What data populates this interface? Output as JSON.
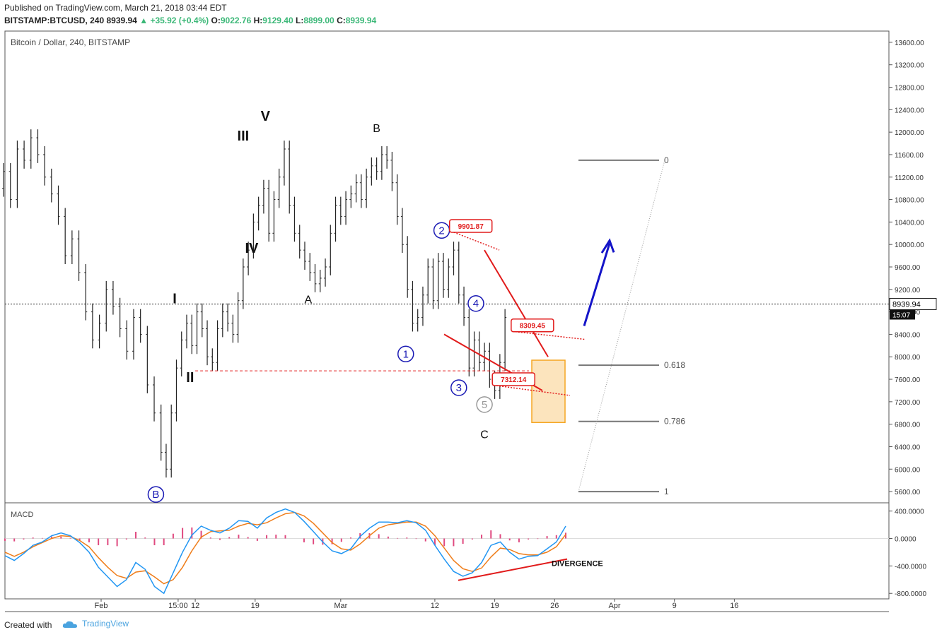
{
  "header": {
    "published_line": "Published on TradingView.com, March 21, 2018 03:44 EDT",
    "symbol": "BITSTAMP:BTCUSD, 240",
    "last": "8939.94",
    "change": "+35.92 (+0.4%)",
    "o_label": "O:",
    "o_value": "9022.76",
    "h_label": "H:",
    "h_value": "9129.40",
    "l_label": "L:",
    "l_value": "8899.00",
    "c_label": "C:",
    "c_value": "8939.94",
    "up_arrow": "▲"
  },
  "footer": {
    "created_with": "Created with",
    "brand": "TradingView"
  },
  "colors": {
    "up": "#3cb878",
    "grid": "#e9e9e9",
    "red": "#e11b1b",
    "blue": "#1414c8",
    "wave_circle": "#1a1ab4",
    "orange_box": "#f5a623",
    "fib_line": "#777777",
    "macd_line": "#2196f3",
    "signal_line": "#ef7d1a",
    "hist_pos": "#e0497f",
    "hist_neg": "#e0497f"
  },
  "chart_data": [
    {
      "type": "line",
      "title": "Bitcoin / Dollar, 240, BITSTAMP",
      "y_axis": {
        "ticks": [
          5600,
          6000,
          6400,
          6800,
          7200,
          7600,
          8000,
          8400,
          8800,
          9200,
          9600,
          10000,
          10400,
          10800,
          11200,
          11600,
          12000,
          12400,
          12800,
          13200,
          13600
        ],
        "tick_labels": [
          "5600.00",
          "6000.00",
          "6400.00",
          "6800.00",
          "7200.00",
          "7600.00",
          "8000.00",
          "8400.00",
          "8800.00",
          "9200.00",
          "9600.00",
          "10000.00",
          "10400.00",
          "10800.00",
          "11200.00",
          "11600.00",
          "12000.00",
          "12400.00",
          "12800.00",
          "13200.00",
          "13600.00"
        ],
        "ylim": [
          5400,
          13800
        ]
      },
      "x_axis": {
        "labels": [
          "Feb",
          "15:00",
          "12",
          "19",
          "Mar",
          "12",
          "19",
          "26",
          "Apr",
          "9",
          "16"
        ],
        "label_days": [
          0,
          9,
          11,
          18,
          28,
          39,
          46,
          53,
          60,
          67,
          74
        ]
      },
      "current_price": "8939.94",
      "current_price_value": 8939.94,
      "countdown": "15:07",
      "price_series_days": [
        -17,
        -16.2,
        -15.4,
        -14.6,
        -13.8,
        -13,
        -12.2,
        -11.4,
        -10.6,
        -9.8,
        -9,
        -8.2,
        -7.4,
        -6.6,
        -5.8,
        -5,
        -4.2,
        -3.4,
        -2.6,
        -1.8,
        -1,
        -0.2,
        0.6,
        1.4,
        2.2,
        3,
        3.8,
        4.6,
        5.4,
        6.2,
        7,
        7.6,
        8.2,
        8.8,
        9.4,
        10,
        10.6,
        11.2,
        11.8,
        12.4,
        13,
        13.6,
        14.2,
        14.8,
        15.4,
        16,
        16.6,
        17.2,
        17.8,
        18.4,
        19,
        19.6,
        20.2,
        20.8,
        21.4,
        22,
        22.6,
        23.2,
        23.8,
        24.4,
        25,
        25.6,
        26.2,
        26.8,
        27.4,
        28,
        28.6,
        29.2,
        29.8,
        30.4,
        31,
        31.6,
        32.2,
        32.8,
        33.4,
        34,
        34.6,
        35.2,
        35.8,
        36.4,
        37,
        37.6,
        38.2,
        38.8,
        39.4,
        40,
        40.6,
        41.2,
        41.8,
        42.4,
        43,
        43.6,
        44.2,
        44.8,
        45.4,
        46,
        46.6,
        47.2
      ],
      "price_series_values": [
        10200,
        10900,
        10500,
        10800,
        11100,
        10600,
        11000,
        11300,
        10800,
        11700,
        11500,
        11900,
        11600,
        11200,
        10900,
        10500,
        9800,
        10100,
        9500,
        8800,
        8300,
        8600,
        9200,
        8900,
        8500,
        8100,
        8700,
        8400,
        7500,
        7000,
        6300,
        6000,
        7000,
        7800,
        8300,
        8600,
        8200,
        8800,
        8500,
        8000,
        7900,
        8500,
        8800,
        8600,
        8400,
        9000,
        9600,
        9900,
        10400,
        10700,
        11000,
        10200,
        10800,
        11200,
        11700,
        10700,
        10200,
        9900,
        9700,
        9500,
        9300,
        9400,
        9600,
        10200,
        10700,
        10500,
        10800,
        10900,
        11100,
        10800,
        11200,
        11400,
        11300,
        11600,
        11500,
        11100,
        10500,
        10000,
        9200,
        8600,
        8700,
        9100,
        9600,
        9000,
        9700,
        9200,
        9600,
        9900,
        9100,
        8700,
        7800,
        8300,
        7900,
        8100,
        7600,
        7400,
        7900,
        8700,
        8900
      ],
      "annotations": {
        "wave_labels": [
          {
            "text": "I",
            "day": 8.6,
            "price": 8950
          },
          {
            "text": "II",
            "day": 10.4,
            "price": 7550
          },
          {
            "text": "III",
            "day": 16.6,
            "price": 11850
          },
          {
            "text": "IV",
            "day": 17.6,
            "price": 9850
          },
          {
            "text": "V",
            "day": 19.2,
            "price": 12200
          },
          {
            "text": "A",
            "day": 24.2,
            "price": 8950
          },
          {
            "text": "B",
            "day": 32.2,
            "price": 12000
          },
          {
            "text": "C",
            "day": 44.8,
            "price": 6550
          }
        ],
        "circled_labels": [
          {
            "text": "B",
            "day": 6.4,
            "price": 5550,
            "style": "blue"
          },
          {
            "text": "1",
            "day": 35.6,
            "price": 8050,
            "style": "blue"
          },
          {
            "text": "2",
            "day": 39.8,
            "price": 10250,
            "style": "blue"
          },
          {
            "text": "3",
            "day": 41.8,
            "price": 7450,
            "style": "blue"
          },
          {
            "text": "4",
            "day": 43.8,
            "price": 8950,
            "style": "blue"
          },
          {
            "text": "5",
            "day": 44.8,
            "price": 7150,
            "style": "grey"
          }
        ],
        "price_tags": [
          {
            "text": "9901.87",
            "day": 43.2,
            "price": 10330
          },
          {
            "text": "8309.45",
            "day": 50.4,
            "price": 8560
          },
          {
            "text": "7312.14",
            "day": 48.2,
            "price": 7600
          }
        ],
        "fib_levels": [
          {
            "label": "0",
            "price": 11500
          },
          {
            "label": "0.618",
            "price": 7850
          },
          {
            "label": "0.786",
            "price": 6850
          },
          {
            "label": "1",
            "price": 5600
          }
        ],
        "divergence_label": "DIVERGENCE"
      }
    },
    {
      "type": "line",
      "title": "MACD",
      "y_axis": {
        "ticks": [
          -800,
          -400,
          0,
          400
        ],
        "tick_labels": [
          "-800.0000",
          "-400.0000",
          "0.0000",
          "400.0000"
        ],
        "ylim": [
          -880,
          520
        ]
      },
      "macd_values": [
        -250,
        -320,
        -220,
        -100,
        -50,
        40,
        80,
        40,
        -60,
        -200,
        -420,
        -560,
        -700,
        -600,
        -350,
        -450,
        -700,
        -800,
        -500,
        -200,
        50,
        180,
        120,
        80,
        150,
        260,
        250,
        150,
        300,
        380,
        430,
        380,
        250,
        100,
        -50,
        -180,
        -220,
        -150,
        30,
        150,
        240,
        240,
        230,
        260,
        230,
        120,
        -100,
        -300,
        -480,
        -550,
        -500,
        -350,
        -100,
        -50,
        -200,
        -300,
        -260,
        -250,
        -150,
        -50,
        180
      ],
      "signal_values": [
        -200,
        -260,
        -200,
        -120,
        -60,
        0,
        40,
        30,
        -30,
        -120,
        -280,
        -420,
        -540,
        -580,
        -490,
        -470,
        -560,
        -660,
        -600,
        -420,
        -180,
        20,
        100,
        110,
        120,
        180,
        220,
        200,
        230,
        300,
        360,
        380,
        330,
        220,
        80,
        -60,
        -150,
        -170,
        -80,
        40,
        150,
        200,
        220,
        240,
        240,
        180,
        40,
        -140,
        -320,
        -440,
        -480,
        -430,
        -270,
        -140,
        -160,
        -220,
        -240,
        -240,
        -200,
        -120,
        60
      ]
    }
  ]
}
